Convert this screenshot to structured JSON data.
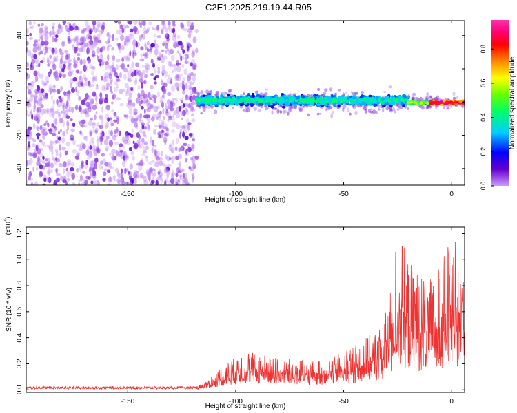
{
  "title": "C2E1.2025.219.19.44.R05",
  "chart_data": [
    {
      "type": "heatmap",
      "xlabel": "Height of straight line (km)",
      "ylabel": "Frequency (Hz)",
      "xlim": [
        -197,
        6
      ],
      "ylim": [
        -50,
        49
      ],
      "xticks": [
        -150,
        -100,
        -50,
        0
      ],
      "yticks": [
        -40,
        -20,
        0,
        20,
        40
      ],
      "colorbar": {
        "label": "Normalized spectral amplitude",
        "range": [
          0.0,
          0.97
        ],
        "ticks": [
          0.0,
          0.2,
          0.4,
          0.6,
          0.8
        ],
        "colormap": [
          "#cc99ff",
          "#6600cc",
          "#0000ff",
          "#00ccff",
          "#00ff66",
          "#66ff00",
          "#ffff00",
          "#ff8800",
          "#ff0000",
          "#ff0077",
          "#ff33aa"
        ]
      },
      "regions": [
        {
          "x_range": [
            -197,
            -118
          ],
          "freq_range": [
            -50,
            49
          ],
          "amplitude": "0.0-0.15"
        },
        {
          "x_range": [
            -118,
            -20
          ],
          "freq_range": [
            -8,
            8
          ],
          "amplitude": "0.1-0.4"
        },
        {
          "x_range": [
            -20,
            6
          ],
          "freq_range": [
            -3,
            3
          ],
          "amplitude": "0.3-0.97"
        }
      ]
    },
    {
      "type": "line",
      "xlabel": "Height of straight line (km)",
      "ylabel": "SNR (10 * v/v)",
      "y_multiplier": "(x10^4)",
      "xlim": [
        -197,
        6
      ],
      "ylim": [
        -0.02,
        1.25
      ],
      "xticks": [
        -150,
        -100,
        -50,
        0
      ],
      "yticks": [
        0.0,
        0.2,
        0.4,
        0.6,
        0.8,
        1.0,
        1.2
      ],
      "series_color": "#ee3333",
      "envelope": [
        {
          "x": -197,
          "y": 0.02
        },
        {
          "x": -150,
          "y": 0.02
        },
        {
          "x": -120,
          "y": 0.02
        },
        {
          "x": -115,
          "y": 0.05
        },
        {
          "x": -105,
          "y": 0.2
        },
        {
          "x": -95,
          "y": 0.3
        },
        {
          "x": -80,
          "y": 0.25
        },
        {
          "x": -65,
          "y": 0.22
        },
        {
          "x": -50,
          "y": 0.3
        },
        {
          "x": -40,
          "y": 0.4
        },
        {
          "x": -32,
          "y": 0.5
        },
        {
          "x": -28,
          "y": 0.8
        },
        {
          "x": -25,
          "y": 1.25
        },
        {
          "x": -20,
          "y": 1.0
        },
        {
          "x": -15,
          "y": 0.9
        },
        {
          "x": -8,
          "y": 0.85
        },
        {
          "x": 0,
          "y": 1.18
        },
        {
          "x": 5,
          "y": 1.1
        }
      ]
    }
  ]
}
